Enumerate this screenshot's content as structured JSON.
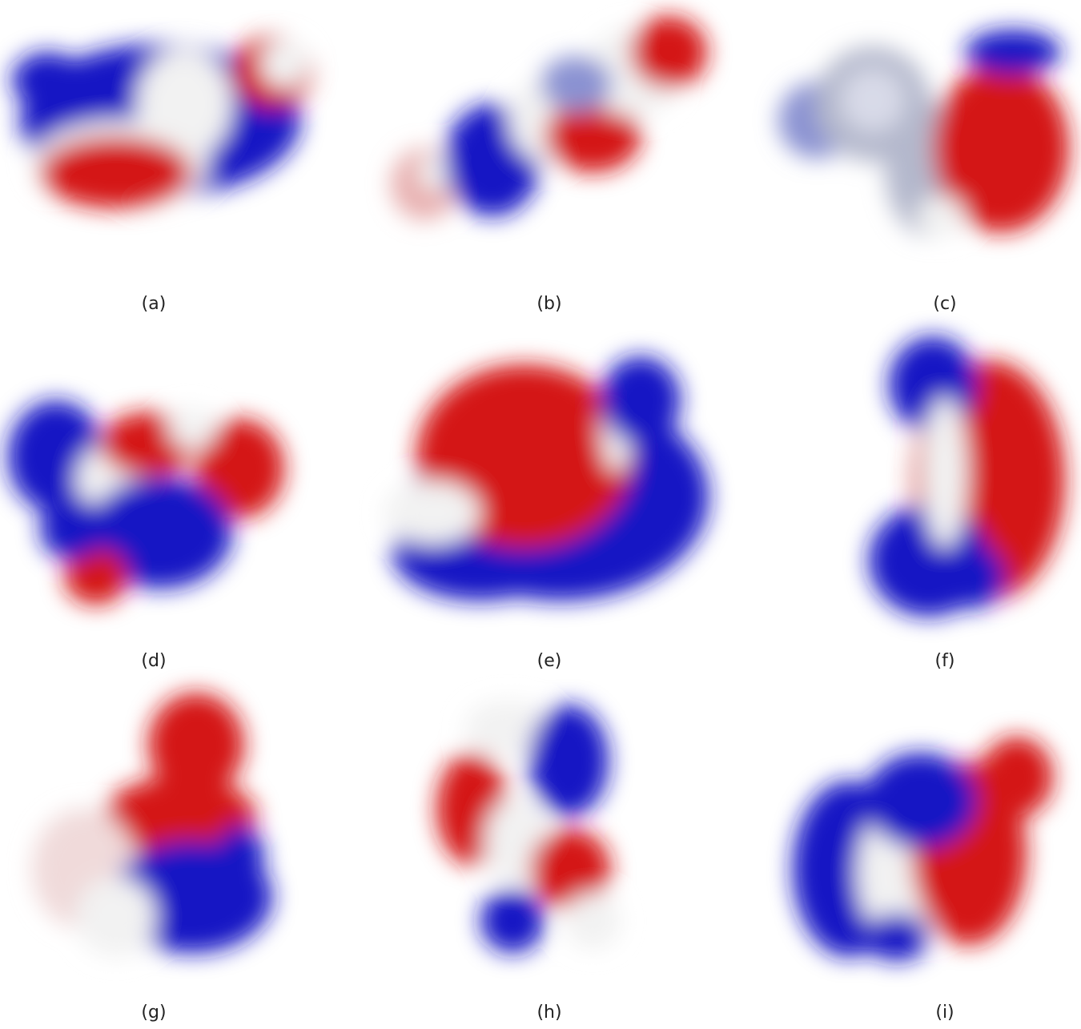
{
  "panels": [
    "(a)",
    "(b)",
    "(c)",
    "(d)",
    "(e)",
    "(f)",
    "(g)",
    "(h)",
    "(i)"
  ]
}
